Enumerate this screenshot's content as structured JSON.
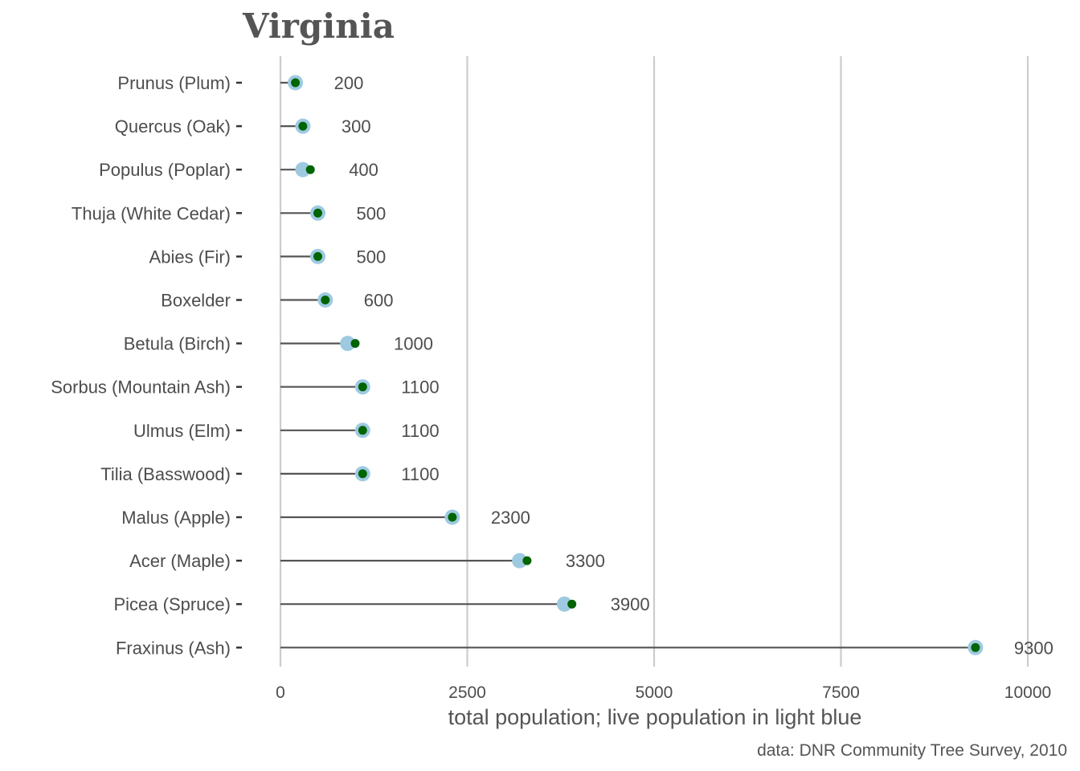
{
  "chart_data": {
    "type": "lollipop",
    "title": "Virginia",
    "xlabel": "total population; live population in light blue",
    "caption": "data: DNR Community Tree Survey, 2010",
    "xlim": [
      0,
      10000
    ],
    "xticks": [
      0,
      2500,
      5000,
      7500,
      10000
    ],
    "xtick_labels": [
      "0",
      "2500",
      "5000",
      "7500",
      "10000"
    ],
    "grid": "vertical major gridlines",
    "categories": [
      "Prunus (Plum)",
      "Quercus (Oak)",
      "Populus (Poplar)",
      "Thuja (White Cedar)",
      "Abies (Fir)",
      "Boxelder",
      "Betula (Birch)",
      "Sorbus (Mountain Ash)",
      "Ulmus (Elm)",
      "Tilia (Basswood)",
      "Malus (Apple)",
      "Acer (Maple)",
      "Picea (Spruce)",
      "Fraxinus (Ash)"
    ],
    "series": [
      {
        "key": "total",
        "values": [
          200,
          300,
          400,
          500,
          500,
          600,
          1000,
          1100,
          1100,
          1100,
          2300,
          3300,
          3900,
          9300
        ]
      },
      {
        "key": "live",
        "values": [
          200,
          300,
          300,
          500,
          500,
          600,
          900,
          1100,
          1100,
          1100,
          2300,
          3200,
          3800,
          9300
        ]
      }
    ],
    "value_labels": [
      "200",
      "300",
      "400",
      "500",
      "500",
      "600",
      "1000",
      "1100",
      "1100",
      "1100",
      "2300",
      "3300",
      "3900",
      "9300"
    ],
    "colors": {
      "total_point": "#006400",
      "live_point": "#9ecae1",
      "stem": "#555555",
      "grid": "#cccccc",
      "text": "#4d4d4d"
    }
  }
}
